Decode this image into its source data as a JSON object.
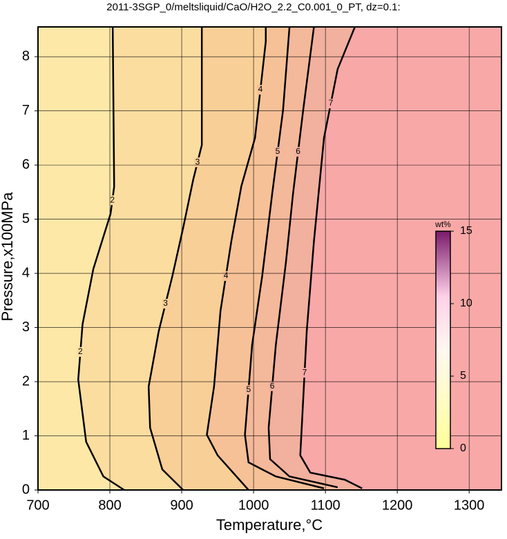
{
  "chart_data": {
    "type": "contour",
    "title": "2011-3SGP_0/meltsliquid/CaO/H2O_2.2_C0.001_0_PT, dz=0.1:",
    "x_label": "Temperature,°C",
    "y_label": "Pressure,x100MPa",
    "xlim": [
      700,
      1345
    ],
    "ylim": [
      0,
      8.55
    ],
    "xticks": [
      700,
      800,
      900,
      1000,
      1100,
      1200,
      1300
    ],
    "yticks": [
      0,
      1,
      2,
      3,
      4,
      5,
      6,
      7,
      8
    ],
    "grid": true,
    "background": "#fde8a8",
    "series": [
      {
        "name": "2",
        "fill": "#fcdda0",
        "x": [
          820,
          791,
          767,
          756,
          762,
          777,
          801,
          806,
          804
        ],
        "y": [
          0,
          0.25,
          0.89,
          2.04,
          3.06,
          4.08,
          5.1,
          5.6,
          8.55
        ]
      },
      {
        "name": "3",
        "fill": "#f9cf98",
        "x": [
          902,
          873,
          856,
          854,
          868,
          887,
          902,
          916,
          928,
          928
        ],
        "y": [
          0,
          0.38,
          1.15,
          1.91,
          2.93,
          3.95,
          4.84,
          5.73,
          6.37,
          8.55
        ]
      },
      {
        "name": "4",
        "fill": "#f6c197",
        "x": [
          993,
          950,
          935,
          945,
          954,
          969,
          983,
          1002,
          1017,
          1017
        ],
        "y": [
          0,
          0.64,
          1.02,
          1.91,
          3.31,
          4.59,
          5.61,
          6.5,
          8.28,
          8.55
        ]
      },
      {
        "name": "5",
        "fill": "#f4b89a",
        "x": [
          1098,
          1031,
          993,
          988,
          998,
          1012,
          1026,
          1041,
          1050
        ],
        "y": [
          0.03,
          0.25,
          0.51,
          1.02,
          2.68,
          3.95,
          5.48,
          7.01,
          8.55
        ]
      },
      {
        "name": "6",
        "fill": "#f2b09e",
        "x": [
          1117,
          1050,
          1023,
          1021,
          1031,
          1045,
          1055,
          1069,
          1084
        ],
        "y": [
          0.05,
          0.25,
          0.57,
          1.15,
          2.68,
          4.2,
          5.48,
          7.01,
          8.55
        ]
      },
      {
        "name": "7",
        "fill": "#f9a8a8",
        "x": [
          1151,
          1127,
          1079,
          1065,
          1068,
          1074,
          1084,
          1098,
          1117,
          1141
        ],
        "y": [
          0.03,
          0.19,
          0.32,
          0.64,
          1.4,
          2.93,
          4.59,
          6.5,
          7.77,
          8.55
        ]
      }
    ],
    "colorbar": {
      "label": "wt%",
      "lim": [
        0,
        15
      ],
      "ticks": [
        0,
        5,
        10,
        15
      ]
    }
  }
}
